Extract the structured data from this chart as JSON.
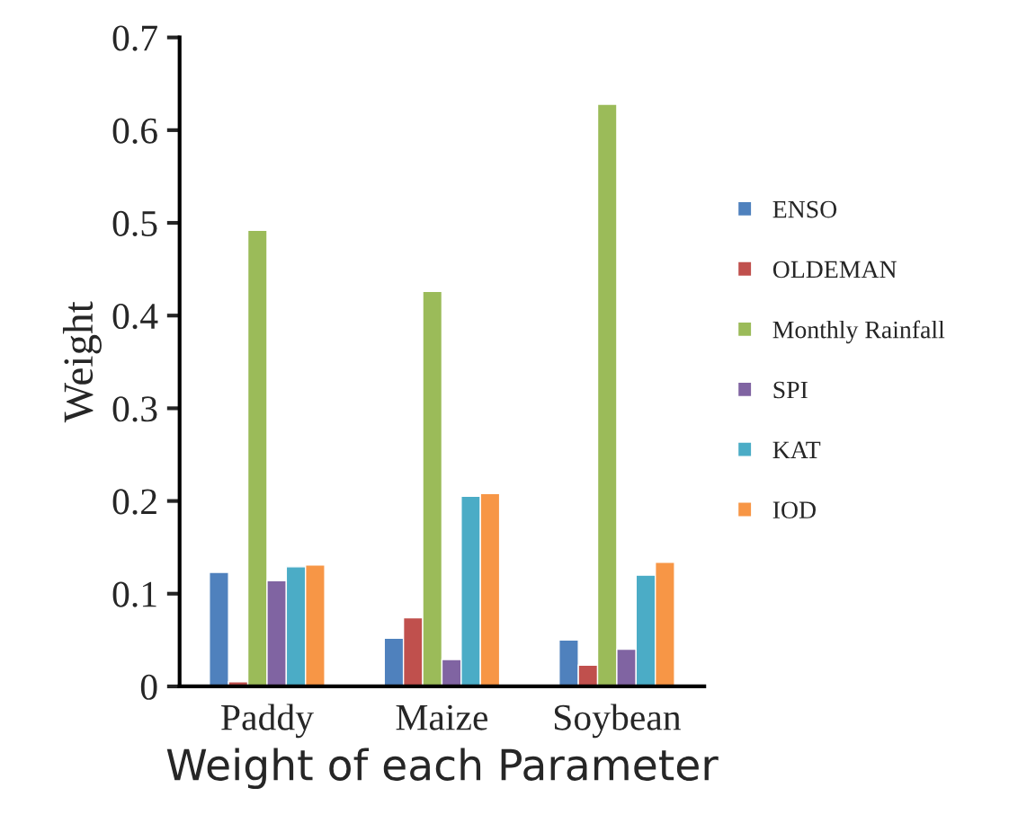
{
  "chart_data": {
    "type": "bar",
    "xlabel": "Weight of each Parameter",
    "ylabel": "Weight",
    "categories": [
      "Paddy",
      "Maize",
      "Soybean"
    ],
    "series": [
      {
        "name": "ENSO",
        "color": "#4f81bd",
        "values": [
          0.123,
          0.052,
          0.05
        ]
      },
      {
        "name": "OLDEMAN",
        "color": "#c0504d",
        "values": [
          0.005,
          0.074,
          0.023
        ]
      },
      {
        "name": "Monthly Rainfall",
        "color": "#9bbb59",
        "values": [
          0.492,
          0.426,
          0.628
        ]
      },
      {
        "name": "SPI",
        "color": "#8064a2",
        "values": [
          0.114,
          0.029,
          0.04
        ]
      },
      {
        "name": "KAT",
        "color": "#4bacc6",
        "values": [
          0.129,
          0.205,
          0.12
        ]
      },
      {
        "name": "IOD",
        "color": "#f79646",
        "values": [
          0.131,
          0.208,
          0.134
        ]
      }
    ],
    "ylim": [
      0,
      0.7
    ],
    "yticks": [
      0,
      0.1,
      0.2,
      0.3,
      0.4,
      0.5,
      0.6,
      0.7
    ],
    "grid": false,
    "legend": "right"
  }
}
